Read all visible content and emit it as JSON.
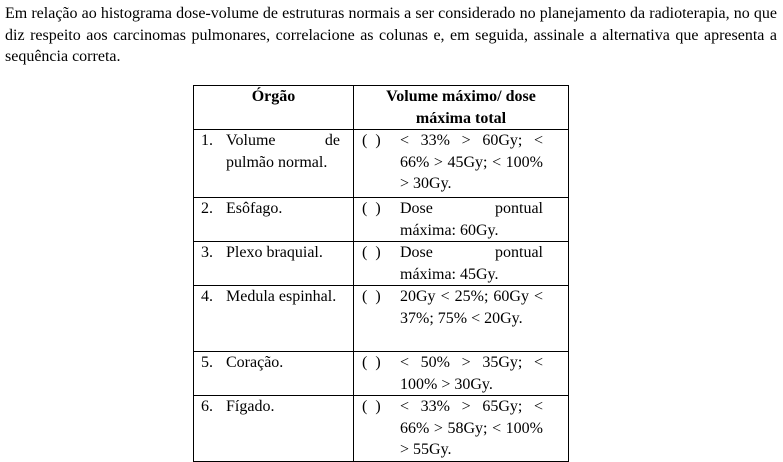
{
  "question": "Em relação ao histograma dose-volume de estruturas normais a ser considerado no planejamento da radioterapia, no que diz respeito aos carcinomas pulmonares, correlacione as colunas e, em seguida, assinale a alternativa que apresenta a sequência correta.",
  "table": {
    "headers": [
      "Órgão",
      "Volume máximo/ dose máxima total"
    ],
    "blank_marker": "(  )",
    "rows": [
      {
        "num": "1.",
        "organ": "Volume de pulmão normal.",
        "value": "< 33% > 60Gy; < 66% > 45Gy; < 100% > 30Gy."
      },
      {
        "num": "2.",
        "organ": "Esôfago.",
        "value": "Dose pontual máxima: 60Gy."
      },
      {
        "num": "3.",
        "organ": "Plexo braquial.",
        "value": "Dose pontual máxima: 45Gy."
      },
      {
        "num": "4.",
        "organ": "Medula espinhal.",
        "value": "20Gy < 25%; 60Gy < 37%; 75% < 20Gy."
      },
      {
        "num": "5.",
        "organ": "Coração.",
        "value": "< 50% > 35Gy; < 100% > 30Gy."
      },
      {
        "num": "6.",
        "organ": "Fígado.",
        "value": "< 33% > 65Gy; < 66% > 58Gy; < 100% > 55Gy."
      }
    ]
  }
}
